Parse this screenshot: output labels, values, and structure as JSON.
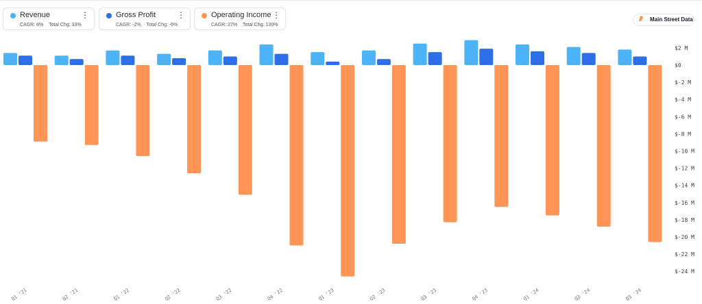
{
  "legend": [
    {
      "name": "Revenue",
      "color": "#4db3f7",
      "cagr": "CAGR: 8%",
      "total_chg": "Total Chg: 33%"
    },
    {
      "name": "Gross Profit",
      "color": "#2c6fe8",
      "cagr": "CAGR: -2%",
      "total_chg": "Total Chg: -6%"
    },
    {
      "name": "Operating Income",
      "color": "#ff9658",
      "cagr": "CAGR: 27%",
      "total_chg": "Total Chg: 130%"
    }
  ],
  "menu_icon": "kebab-vertical-icon",
  "brand": {
    "icon": "main-street-data-logo-icon",
    "label": "Main Street Data"
  },
  "chart_data": {
    "type": "bar",
    "categories": [
      "Q1 '21",
      "Q2 '21",
      "Q1 '22",
      "Q2 '22",
      "Q3 '22",
      "Q4 '22",
      "Q1 '23",
      "Q2 '23",
      "Q3 '23",
      "Q4 '23",
      "Q1 '24",
      "Q2 '24",
      "Q3 '24"
    ],
    "series": [
      {
        "name": "Revenue",
        "color": "#4db3f7",
        "values": [
          1.4,
          1.1,
          1.7,
          1.3,
          1.7,
          2.4,
          1.5,
          1.7,
          2.5,
          2.9,
          2.4,
          2.1,
          1.8
        ]
      },
      {
        "name": "Gross Profit",
        "color": "#2c6fe8",
        "values": [
          1.1,
          0.7,
          1.1,
          0.8,
          1.0,
          1.3,
          0.4,
          0.7,
          1.5,
          1.9,
          1.6,
          1.4,
          1.0
        ]
      },
      {
        "name": "Operating Income",
        "color": "#ff9658",
        "values": [
          -8.9,
          -9.3,
          -10.6,
          -12.6,
          -15.1,
          -21.0,
          -24.6,
          -20.8,
          -18.3,
          -16.5,
          -17.5,
          -18.8,
          -20.6
        ]
      }
    ],
    "y_ticks": [
      2,
      0,
      -2,
      -4,
      -6,
      -8,
      -10,
      -12,
      -14,
      -16,
      -18,
      -20,
      -22,
      -24
    ],
    "y_tick_labels": [
      "$2 M",
      "$0",
      "$-2 M",
      "$-4 M",
      "$-6 M",
      "$-8 M",
      "$-10 M",
      "$-12 M",
      "$-14 M",
      "$-16 M",
      "$-18 M",
      "$-20 M",
      "$-22 M",
      "$-24 M"
    ],
    "ylim": [
      -25,
      3
    ],
    "y_axis_position": "right",
    "grid": false,
    "legend_position": "top-left"
  }
}
